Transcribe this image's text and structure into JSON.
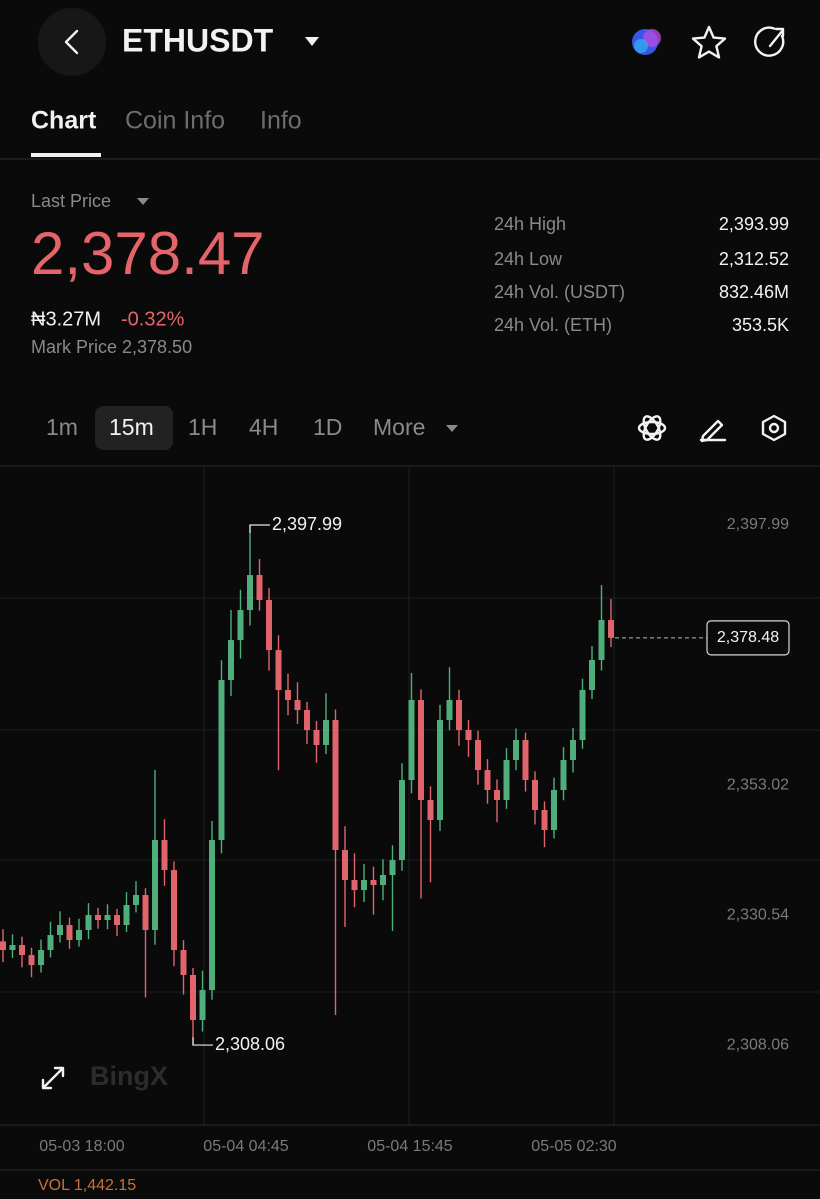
{
  "header": {
    "title": "ETHUSDT"
  },
  "tabs": [
    "Chart",
    "Coin Info",
    "Info"
  ],
  "summary": {
    "last_price_label": "Last Price",
    "last_price": "2,378.47",
    "fiat": "₦3.27M",
    "change": "-0.32%",
    "mark_price": "Mark Price 2,378.50"
  },
  "stats": [
    {
      "label": "24h High",
      "value": "2,393.99"
    },
    {
      "label": "24h Low",
      "value": "2,312.52"
    },
    {
      "label": "24h Vol. (USDT)",
      "value": "832.46M"
    },
    {
      "label": "24h Vol. (ETH)",
      "value": "353.5K"
    }
  ],
  "intervals": [
    "1m",
    "15m",
    "1H",
    "4H",
    "1D",
    "More"
  ],
  "chart": {
    "type": "candlestick",
    "ylim": [
      2294.24,
      2408.37
    ],
    "yticks": [
      {
        "value": 2397.99,
        "label": "2,397.99"
      },
      {
        "value": 2353.02,
        "label": "2,353.02"
      },
      {
        "value": 2330.54,
        "label": "2,330.54"
      },
      {
        "value": 2308.06,
        "label": "2,308.06"
      }
    ],
    "x_labels": [
      "05-03 18:00",
      "05-04 04:45",
      "05-04 15:45",
      "05-05 02:30"
    ],
    "high_label": {
      "value": 2397.99,
      "label": "2,397.99"
    },
    "low_label": {
      "value": 2308.06,
      "label": "2,308.06"
    },
    "current_price": {
      "value": 2378.48,
      "label": "2,378.48"
    },
    "up_color": "#4fae7c",
    "down_color": "#e0646c",
    "candles": [
      [
        2326.0,
        2328.1,
        2322.4,
        2324.5
      ],
      [
        2324.5,
        2327.2,
        2323.1,
        2325.36
      ],
      [
        2325.36,
        2326.8,
        2321.5,
        2323.63
      ],
      [
        2323.63,
        2324.9,
        2319.8,
        2321.9
      ],
      [
        2321.9,
        2326.3,
        2320.6,
        2324.5
      ],
      [
        2324.5,
        2329.4,
        2323.2,
        2327.09
      ],
      [
        2327.09,
        2331.2,
        2325.8,
        2328.82
      ],
      [
        2328.82,
        2330.1,
        2324.7,
        2326.23
      ],
      [
        2326.23,
        2329.9,
        2325.1,
        2327.96
      ],
      [
        2327.96,
        2332.6,
        2326.4,
        2330.55
      ],
      [
        2330.55,
        2331.8,
        2328.2,
        2329.69
      ],
      [
        2329.69,
        2332.4,
        2328.1,
        2330.55
      ],
      [
        2330.55,
        2331.6,
        2326.9,
        2328.82
      ],
      [
        2328.82,
        2334.5,
        2327.6,
        2332.28
      ],
      [
        2332.28,
        2336.4,
        2331.0,
        2334.01
      ],
      [
        2334.01,
        2335.2,
        2316.3,
        2327.96
      ],
      [
        2327.96,
        2355.62,
        2325.4,
        2343.52
      ],
      [
        2343.52,
        2347.1,
        2335.6,
        2338.33
      ],
      [
        2338.33,
        2339.8,
        2321.7,
        2324.5
      ],
      [
        2324.5,
        2326.2,
        2316.8,
        2320.18
      ],
      [
        2320.18,
        2321.4,
        2308.06,
        2312.39
      ],
      [
        2312.39,
        2320.9,
        2310.4,
        2317.58
      ],
      [
        2317.58,
        2346.8,
        2315.9,
        2343.52
      ],
      [
        2343.52,
        2374.6,
        2341.2,
        2371.19
      ],
      [
        2371.19,
        2383.3,
        2368.4,
        2378.1
      ],
      [
        2378.1,
        2386.8,
        2374.9,
        2383.29
      ],
      [
        2383.29,
        2397.99,
        2380.6,
        2389.34
      ],
      [
        2389.34,
        2392.1,
        2383.2,
        2385.02
      ],
      [
        2385.02,
        2387.1,
        2372.8,
        2376.37
      ],
      [
        2376.37,
        2378.9,
        2355.6,
        2369.46
      ],
      [
        2369.46,
        2372.3,
        2365.1,
        2367.73
      ],
      [
        2367.73,
        2370.8,
        2363.6,
        2366.0
      ],
      [
        2366.0,
        2367.4,
        2360.1,
        2362.54
      ],
      [
        2362.54,
        2364.1,
        2356.9,
        2359.95
      ],
      [
        2359.95,
        2368.9,
        2358.4,
        2364.27
      ],
      [
        2364.27,
        2366.1,
        2313.26,
        2341.79
      ],
      [
        2341.79,
        2345.9,
        2328.5,
        2336.6
      ],
      [
        2336.6,
        2341.2,
        2331.9,
        2334.87
      ],
      [
        2334.87,
        2339.4,
        2332.8,
        2336.6
      ],
      [
        2336.6,
        2338.9,
        2330.6,
        2335.74
      ],
      [
        2335.74,
        2340.2,
        2333.1,
        2337.47
      ],
      [
        2337.47,
        2342.6,
        2327.8,
        2340.06
      ],
      [
        2340.06,
        2356.8,
        2338.2,
        2353.9
      ],
      [
        2353.9,
        2372.4,
        2351.6,
        2367.73
      ],
      [
        2367.73,
        2369.6,
        2333.4,
        2350.44
      ],
      [
        2350.44,
        2352.8,
        2336.2,
        2346.98
      ],
      [
        2346.98,
        2366.9,
        2345.1,
        2364.27
      ],
      [
        2364.27,
        2373.4,
        2362.5,
        2367.73
      ],
      [
        2367.73,
        2369.5,
        2359.8,
        2362.54
      ],
      [
        2362.54,
        2364.3,
        2357.9,
        2360.81
      ],
      [
        2360.81,
        2362.4,
        2353.1,
        2355.62
      ],
      [
        2355.62,
        2357.5,
        2349.8,
        2352.17
      ],
      [
        2352.17,
        2354.0,
        2346.6,
        2350.44
      ],
      [
        2350.44,
        2359.4,
        2348.9,
        2357.35
      ],
      [
        2357.35,
        2362.8,
        2355.6,
        2360.81
      ],
      [
        2360.81,
        2362.1,
        2351.9,
        2353.9
      ],
      [
        2353.9,
        2355.4,
        2346.2,
        2348.71
      ],
      [
        2348.71,
        2350.2,
        2342.3,
        2345.25
      ],
      [
        2345.25,
        2354.3,
        2343.8,
        2352.17
      ],
      [
        2352.17,
        2359.6,
        2350.4,
        2357.35
      ],
      [
        2357.35,
        2362.9,
        2355.2,
        2360.81
      ],
      [
        2360.81,
        2371.4,
        2359.3,
        2369.46
      ],
      [
        2369.46,
        2377.1,
        2367.9,
        2374.65
      ],
      [
        2374.65,
        2387.6,
        2372.8,
        2381.56
      ],
      [
        2381.56,
        2385.2,
        2376.9,
        2378.48
      ]
    ]
  },
  "watermark": "BingX",
  "volume": "VOL 1,442.15"
}
